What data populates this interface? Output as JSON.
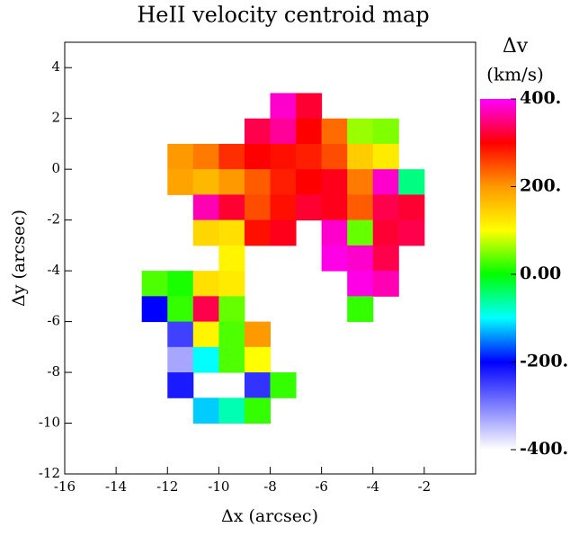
{
  "chart_data": {
    "type": "heatmap",
    "title": "HeII velocity centroid map",
    "xlabel": "Δx (arcsec)",
    "ylabel": "Δy (arcsec)",
    "colorbar_label": [
      "Δv",
      "(km/s)"
    ],
    "xlim": [
      -16,
      0
    ],
    "ylim": [
      -12,
      5
    ],
    "xticks": [
      -16,
      -14,
      -12,
      -10,
      -8,
      -6,
      -4,
      -2
    ],
    "yticks": [
      -12,
      -10,
      -8,
      -6,
      -4,
      -2,
      0,
      2,
      4
    ],
    "clim": [
      -400,
      400
    ],
    "cbticks": [
      {
        "value": 400,
        "label": "400."
      },
      {
        "value": 200,
        "label": "200."
      },
      {
        "value": 0,
        "label": "0.00"
      },
      {
        "value": -200,
        "label": "-200."
      },
      {
        "value": -400,
        "label": "-400."
      }
    ],
    "colorscale": [
      [
        -400,
        "#ffffff"
      ],
      [
        -200,
        "#0000ff"
      ],
      [
        -100,
        "#00ffff"
      ],
      [
        0,
        "#00ff00"
      ],
      [
        100,
        "#ffff00"
      ],
      [
        200,
        "#ff9900"
      ],
      [
        300,
        "#ff0000"
      ],
      [
        400,
        "#ff00ff"
      ]
    ],
    "x": [
      -13.5,
      -12.5,
      -11.5,
      -10.5,
      -9.5,
      -8.5,
      -7.5,
      -6.5,
      -5.5,
      -4.5,
      -3.5,
      -2.5
    ],
    "y": [
      2.5,
      1.5,
      0.5,
      -0.5,
      -1.5,
      -2.5,
      -3.5,
      -4.5,
      -5.5,
      -6.5,
      -7.5,
      -8.5,
      -9.5
    ],
    "values": [
      [
        null,
        null,
        null,
        null,
        null,
        null,
        380,
        320,
        null,
        null,
        null,
        null
      ],
      [
        null,
        null,
        null,
        null,
        null,
        330,
        360,
        300,
        230,
        60,
        50,
        null
      ],
      [
        null,
        null,
        200,
        220,
        270,
        300,
        290,
        280,
        250,
        150,
        120,
        null
      ],
      [
        null,
        null,
        190,
        170,
        200,
        240,
        280,
        300,
        310,
        220,
        380,
        -50
      ],
      [
        null,
        null,
        null,
        370,
        320,
        250,
        290,
        320,
        310,
        240,
        330,
        320
      ],
      [
        null,
        null,
        null,
        140,
        130,
        290,
        310,
        null,
        380,
        40,
        320,
        330
      ],
      [
        null,
        null,
        null,
        null,
        110,
        null,
        null,
        null,
        390,
        380,
        330,
        null
      ],
      [
        null,
        30,
        10,
        130,
        120,
        null,
        null,
        null,
        null,
        390,
        370,
        null
      ],
      [
        null,
        -200,
        20,
        330,
        40,
        null,
        null,
        null,
        null,
        20,
        null,
        null
      ],
      [
        null,
        null,
        -250,
        110,
        30,
        200,
        null,
        null,
        null,
        null,
        null,
        null
      ],
      [
        null,
        null,
        -330,
        -100,
        30,
        100,
        null,
        null,
        null,
        null,
        null,
        null
      ],
      [
        null,
        null,
        -220,
        null,
        null,
        -240,
        20,
        null,
        null,
        null,
        null,
        null
      ],
      [
        null,
        null,
        null,
        -120,
        -70,
        20,
        null,
        null,
        null,
        null,
        null,
        null
      ]
    ]
  }
}
